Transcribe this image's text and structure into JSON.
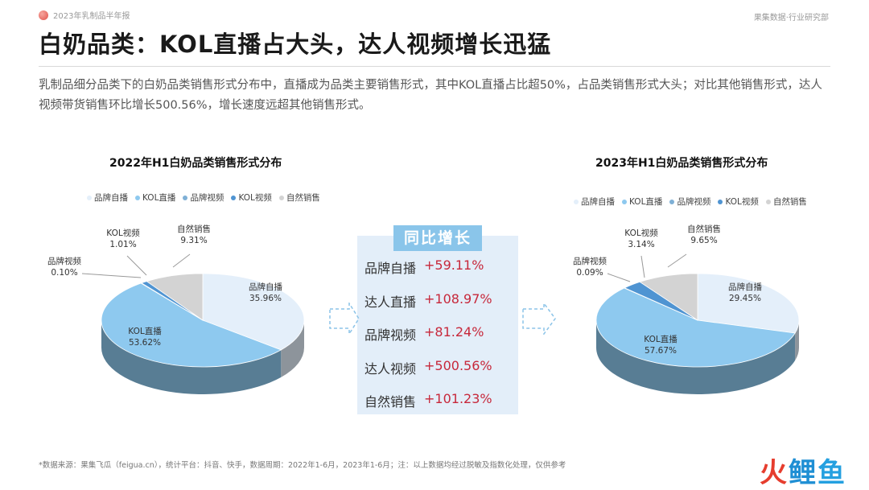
{
  "header": {
    "report_name": "2023年乳制品半年报",
    "brand": "果集数据·行业研究部"
  },
  "page_title": "白奶品类：KOL直播占大头，达人视频增长迅猛",
  "summary": "乳制品细分品类下的白奶品类销售形式分布中，直播成为品类主要销售形式，其中KOL直播占比超50%，占品类销售形式大头；对比其他销售形式，达人视频带货销售环比增长500.56%，增长速度远超其他销售形式。",
  "colors": {
    "品牌自播": "#e4effa",
    "KOL直播": "#8ec9ef",
    "品牌视频": "#7fb0d6",
    "KOL视频": "#4f94d2",
    "自然销售": "#d3d3d3",
    "accent_red": "#c7283b"
  },
  "chart_data": [
    {
      "type": "pie",
      "title": "2022年H1白奶品类销售形式分布",
      "legend_position": "top",
      "slices": [
        {
          "name": "品牌自播",
          "value": 35.96,
          "label": "35.96%"
        },
        {
          "name": "KOL直播",
          "value": 53.62,
          "label": "53.62%"
        },
        {
          "name": "品牌视频",
          "value": 0.1,
          "label": "0.10%"
        },
        {
          "name": "KOL视频",
          "value": 1.01,
          "label": "1.01%"
        },
        {
          "name": "自然销售",
          "value": 9.31,
          "label": "9.31%"
        }
      ]
    },
    {
      "type": "pie",
      "title": "2023年H1白奶品类销售形式分布",
      "legend_position": "top",
      "slices": [
        {
          "name": "品牌自播",
          "value": 29.45,
          "label": "29.45%"
        },
        {
          "name": "KOL直播",
          "value": 57.67,
          "label": "57.67%"
        },
        {
          "name": "品牌视频",
          "value": 0.09,
          "label": "0.09%"
        },
        {
          "name": "KOL视频",
          "value": 3.14,
          "label": "3.14%"
        },
        {
          "name": "自然销售",
          "value": 9.65,
          "label": "9.65%"
        }
      ]
    }
  ],
  "growth": {
    "title": "同比增长",
    "rows": [
      {
        "label": "品牌自播",
        "value": "+59.11%"
      },
      {
        "label": "达人直播",
        "value": "+108.97%"
      },
      {
        "label": "品牌视频",
        "value": "+81.24%"
      },
      {
        "label": "达人视频",
        "value": "+500.56%"
      },
      {
        "label": "自然销售",
        "value": "+101.23%"
      }
    ]
  },
  "footnote": "*数据来源：果集飞瓜（feigua.cn），统计平台：抖音、快手，数据周期：2022年1-6月，2023年1-6月；注：以上数据均经过脱敏及指数化处理，仅供参考",
  "watermark": {
    "part1": "火",
    "part2": "鲤",
    "part3": "鱼"
  }
}
